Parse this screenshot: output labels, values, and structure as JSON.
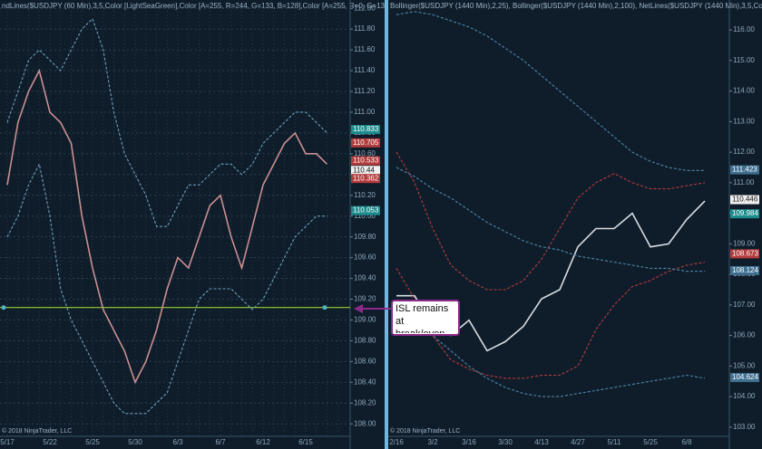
{
  "chart_data": [
    {
      "type": "line",
      "title": "ndLines($USDJPY (60 Min),3,5,Color [LightSeaGreen],Color [A=255, R=244, G=133, B=128],Color [A=255, R=0, G=131,",
      "copyright": "© 2018 NinjaTrader, LLC",
      "categories": [
        "5/17",
        null,
        null,
        null,
        "5/22",
        null,
        null,
        null,
        "5/25",
        null,
        null,
        null,
        "5/30",
        null,
        null,
        null,
        "6/3",
        null,
        null,
        null,
        "6/7",
        null,
        null,
        null,
        "6/12",
        null,
        null,
        null,
        "6/15",
        null,
        null,
        null
      ],
      "series": [
        {
          "color": "#c98f8f",
          "values": [
            110.3,
            110.9,
            111.2,
            111.4,
            111.0,
            110.9,
            110.7,
            110.0,
            109.5,
            109.1,
            108.9,
            108.7,
            108.4,
            108.6,
            108.9,
            109.3,
            109.6,
            109.5,
            109.8,
            110.1,
            110.2,
            109.8,
            109.5,
            109.9,
            110.3,
            110.5,
            110.7,
            110.8,
            110.6,
            110.6,
            110.5,
            null
          ]
        },
        {
          "color": "#6f9fb8",
          "values": [
            110.9,
            111.2,
            111.5,
            111.6,
            111.5,
            111.4,
            111.6,
            111.8,
            111.9,
            111.6,
            111.0,
            110.6,
            110.4,
            110.2,
            109.9,
            109.9,
            110.1,
            110.3,
            110.3,
            110.4,
            110.5,
            110.5,
            110.4,
            110.5,
            110.7,
            110.8,
            110.9,
            111.0,
            111.0,
            110.9,
            110.8,
            null
          ]
        },
        {
          "color": "#6f9fb8",
          "values": [
            109.8,
            110.0,
            110.3,
            110.5,
            110.0,
            109.3,
            109.0,
            108.8,
            108.6,
            108.4,
            108.2,
            108.1,
            108.1,
            108.1,
            108.2,
            108.3,
            108.6,
            108.9,
            109.2,
            109.3,
            109.3,
            109.3,
            109.2,
            109.1,
            109.2,
            109.4,
            109.6,
            109.8,
            109.9,
            110.0,
            110.0,
            null
          ]
        }
      ],
      "hline": {
        "value": 109.12,
        "color": "#9acd32"
      },
      "markers": [
        {
          "value": 110.833,
          "color": "#1c8c8c"
        },
        {
          "value": 110.705,
          "color": "#b23b3b"
        },
        {
          "value": 110.533,
          "color": "#b23b3b"
        },
        {
          "value": 110.44,
          "color": "#f0f0f0"
        },
        {
          "value": 110.362,
          "color": "#b23b3b"
        },
        {
          "value": 110.053,
          "color": "#1c8c8c"
        }
      ],
      "ylim": [
        107.88,
        112.08
      ],
      "yticks": [
        {
          "value": 108,
          "label": "108.00"
        },
        {
          "value": 108.2,
          "label": "108.20"
        },
        {
          "value": 108.4,
          "label": "108.40"
        },
        {
          "value": 108.6,
          "label": "108.60"
        },
        {
          "value": 108.8,
          "label": "108.80"
        },
        {
          "value": 109,
          "label": "109.00"
        },
        {
          "value": 109.2,
          "label": "109.20"
        },
        {
          "value": 109.4,
          "label": "109.40"
        },
        {
          "value": 109.6,
          "label": "109.60"
        },
        {
          "value": 109.8,
          "label": "109.80"
        },
        {
          "value": 110,
          "label": "110.00"
        },
        {
          "value": 110.2,
          "label": "110.20"
        },
        {
          "value": 110.4,
          "label": "110.40"
        },
        {
          "value": 110.6,
          "label": "110.60"
        },
        {
          "value": 110.8,
          "label": "110.80"
        },
        {
          "value": 111,
          "label": "111.00"
        },
        {
          "value": 111.2,
          "label": "111.20"
        },
        {
          "value": 111.4,
          "label": "111.40"
        },
        {
          "value": 111.6,
          "label": "111.60"
        },
        {
          "value": 111.8,
          "label": "111.80"
        },
        {
          "value": 112,
          "label": "112.00"
        }
      ],
      "grid": true
    },
    {
      "type": "line",
      "title": "Bollinger($USDJPY (1440 Min),2,25), Bollinger($USDJPY (1440 Min),2,100), NetLines($USDJPY (1440 Min),3,5,Color",
      "copyright": "© 2018 NinjaTrader, LLC",
      "annotation": "ISL remains at break/even.",
      "categories": [
        "2/16",
        null,
        "3/2",
        null,
        "3/16",
        null,
        "3/30",
        null,
        "4/13",
        null,
        "4/27",
        null,
        "5/11",
        null,
        "5/25",
        null,
        "6/8",
        null,
        null
      ],
      "series": [
        {
          "color": "#d7dde2",
          "values": [
            107.3,
            107.3,
            106.3,
            106.0,
            106.5,
            105.5,
            105.8,
            106.3,
            107.2,
            107.5,
            108.9,
            109.5,
            109.5,
            110.0,
            108.9,
            109.0,
            109.8,
            110.4,
            null
          ]
        },
        {
          "color": "#b83a3a",
          "values": [
            112.0,
            111.0,
            109.5,
            108.3,
            107.8,
            107.5,
            107.5,
            107.8,
            108.5,
            109.5,
            110.5,
            111.0,
            111.3,
            111.0,
            110.8,
            110.8,
            110.9,
            111.0,
            null
          ]
        },
        {
          "color": "#b83a3a",
          "values": [
            108.2,
            107.2,
            106.0,
            105.2,
            104.9,
            104.7,
            104.6,
            104.6,
            104.7,
            104.7,
            105.0,
            106.2,
            107.0,
            107.6,
            107.8,
            108.1,
            108.3,
            108.4,
            null
          ]
        },
        {
          "color": "#4f86a8",
          "values": [
            116.5,
            116.6,
            116.5,
            116.3,
            116.1,
            115.8,
            115.4,
            115.0,
            114.5,
            114.0,
            113.5,
            113.0,
            112.5,
            112.0,
            111.7,
            111.5,
            111.4,
            111.4,
            null
          ]
        },
        {
          "color": "#4f86a8",
          "values": [
            111.5,
            111.2,
            110.8,
            110.5,
            110.1,
            109.7,
            109.4,
            109.1,
            108.9,
            108.8,
            108.6,
            108.5,
            108.4,
            108.3,
            108.2,
            108.2,
            108.1,
            108.1,
            null
          ]
        },
        {
          "color": "#4f86a8",
          "values": [
            106.8,
            106.5,
            106.0,
            105.5,
            105.0,
            104.6,
            104.3,
            104.1,
            104.0,
            104.0,
            104.1,
            104.2,
            104.3,
            104.4,
            104.5,
            104.6,
            104.7,
            104.6,
            null
          ]
        }
      ],
      "markers": [
        {
          "value": 111.423,
          "color": "#3f6f8f"
        },
        {
          "value": 110.446,
          "color": "#f0f0f0"
        },
        {
          "value": 109.984,
          "color": "#1c8c8c"
        },
        {
          "value": 108.673,
          "color": "#b23b3b"
        },
        {
          "value": 108.124,
          "color": "#3f6f8f"
        },
        {
          "value": 104.624,
          "color": "#3f6f8f"
        }
      ],
      "ylim": [
        102.7,
        116.98
      ],
      "yticks": [
        {
          "value": 103,
          "label": "103.00"
        },
        {
          "value": 104,
          "label": "104.00"
        },
        {
          "value": 105,
          "label": "105.00"
        },
        {
          "value": 106,
          "label": "106.00"
        },
        {
          "value": 107,
          "label": "107.00"
        },
        {
          "value": 108,
          "label": "108.00"
        },
        {
          "value": 109,
          "label": "109.00"
        },
        {
          "value": 110,
          "label": "110.00"
        },
        {
          "value": 111,
          "label": "111.00"
        },
        {
          "value": 112,
          "label": "112.00"
        },
        {
          "value": 113,
          "label": "113.00"
        },
        {
          "value": 114,
          "label": "114.00"
        },
        {
          "value": 115,
          "label": "115.00"
        },
        {
          "value": 116,
          "label": "116.00"
        }
      ],
      "grid": false
    }
  ]
}
